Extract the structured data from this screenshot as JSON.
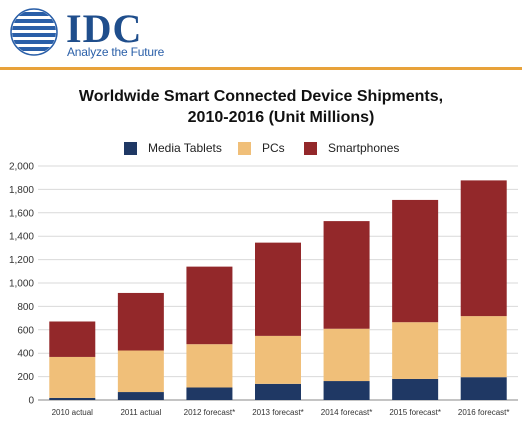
{
  "logo": {
    "brand": "IDC",
    "tagline": "Analyze the Future",
    "icon": "globe-icon",
    "colors": {
      "brand": "#1f4e8c",
      "rule": "#e8a23a"
    }
  },
  "chart_data": {
    "type": "bar",
    "stacked": true,
    "title_line1": "Worldwide Smart Connected Device Shipments,",
    "title_line2": "2010-2016 (Unit Millions)",
    "categories": [
      "2010 actual",
      "2011 actual",
      "2012 forecast*",
      "2013 forecast*",
      "2014 forecast*",
      "2015 forecast*",
      "2016 forecast*"
    ],
    "series": [
      {
        "name": "Media Tablets",
        "color": "#1f3864",
        "values": [
          18,
          68,
          107,
          138,
          162,
          180,
          195
        ]
      },
      {
        "name": "PCs",
        "color": "#f0bf79",
        "values": [
          350,
          355,
          370,
          410,
          447,
          485,
          522
        ]
      },
      {
        "name": "Smartphones",
        "color": "#93282a",
        "values": [
          303,
          492,
          663,
          797,
          920,
          1045,
          1160
        ]
      }
    ],
    "ylim": [
      0,
      2000
    ],
    "yticks": [
      "0",
      "200",
      "400",
      "600",
      "800",
      "1,000",
      "1,200",
      "1,400",
      "1,600",
      "1,800",
      "2,000"
    ],
    "ytick_values": [
      0,
      200,
      400,
      600,
      800,
      1000,
      1200,
      1400,
      1600,
      1800,
      2000
    ],
    "grid": true,
    "legend_position": "top"
  }
}
